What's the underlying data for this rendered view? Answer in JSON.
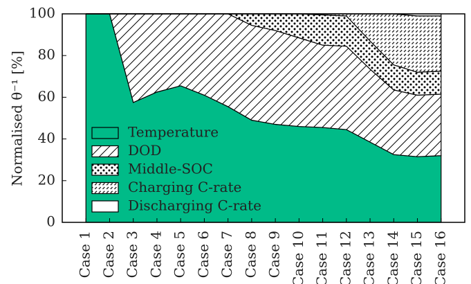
{
  "chart_data": {
    "type": "stacked-area",
    "ylabel": "Normalised θ⁻¹ [%]",
    "categories": [
      "Case 1",
      "Case 2",
      "Case 3",
      "Case 4",
      "Case 5",
      "Case 6",
      "Case 7",
      "Case 8",
      "Case 9",
      "Case 10",
      "Case 11",
      "Case 12",
      "Case 13",
      "Case 14",
      "Case 15",
      "Case 16"
    ],
    "series": [
      {
        "name": "Temperature",
        "color": "#00bb88",
        "hatch": "solid",
        "values": [
          100,
          100,
          57.5,
          62.5,
          65.5,
          61,
          55.5,
          49,
          47,
          46,
          45.5,
          44.5,
          38.5,
          32.5,
          31.5,
          32
        ]
      },
      {
        "name": "DOD",
        "color": "#000000",
        "hatch": "diagonal",
        "values": [
          0,
          0,
          42.5,
          37.5,
          34.5,
          39,
          44.5,
          45.5,
          45,
          42.5,
          39.5,
          40,
          35,
          31,
          29.5,
          29.5
        ]
      },
      {
        "name": "Middle-SOC",
        "color": "#000000",
        "hatch": "dots",
        "values": [
          0,
          0,
          0,
          0,
          0,
          0,
          0,
          5.5,
          8,
          11.5,
          14.5,
          14.5,
          13.5,
          12,
          11,
          11
        ]
      },
      {
        "name": "Charging C-rate",
        "color": "#000000",
        "hatch": "dashes",
        "values": [
          0,
          0,
          0,
          0,
          0,
          0,
          0,
          0,
          0,
          0,
          0.5,
          1,
          13,
          24.5,
          27,
          26.5
        ]
      },
      {
        "name": "Discharging C-rate",
        "color": "#ffffff",
        "hatch": "none",
        "values": [
          0,
          0,
          0,
          0,
          0,
          0,
          0,
          0,
          0,
          0,
          0,
          0,
          0,
          0,
          1,
          1
        ]
      }
    ],
    "ylim": [
      0,
      100
    ],
    "yticks": [
      0,
      20,
      40,
      60,
      80,
      100
    ],
    "legend": "lower left"
  }
}
